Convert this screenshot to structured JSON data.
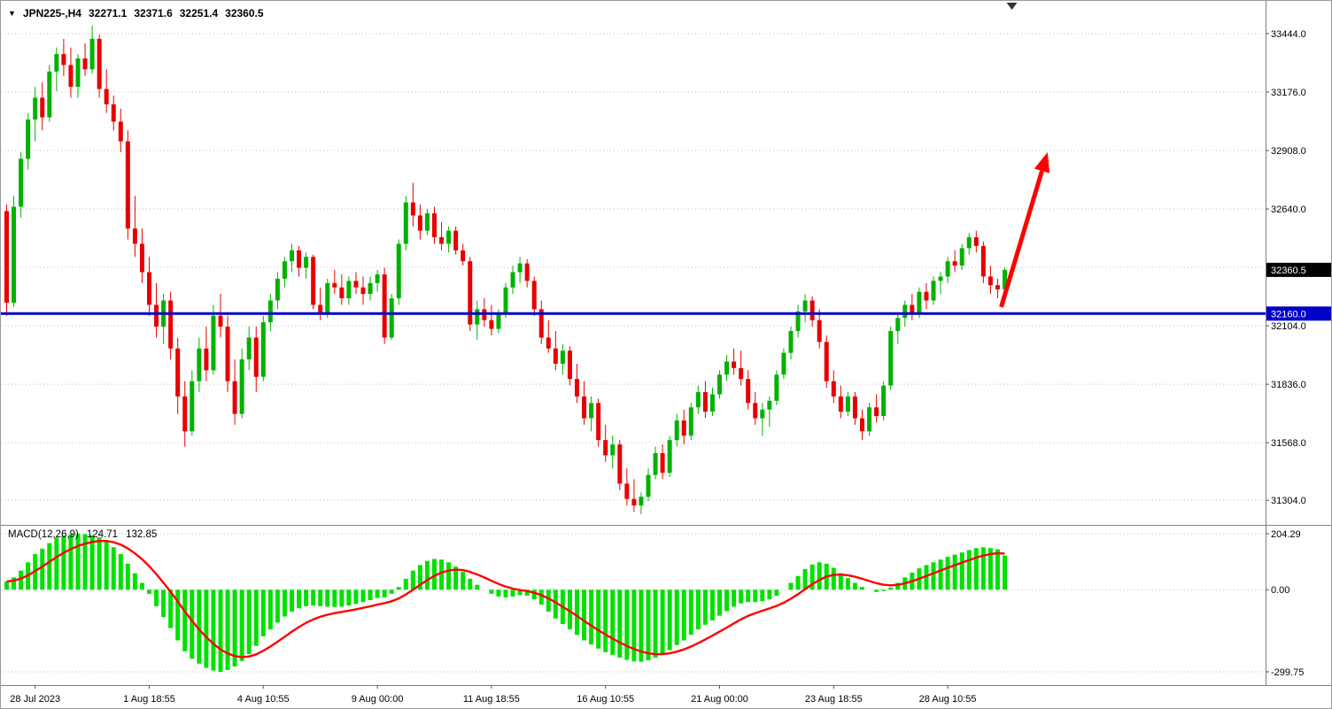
{
  "header": {
    "expand_icon": "▼",
    "instrument": "JPN225-,H4",
    "open": "32271.1",
    "high": "32371.6",
    "low": "32251.4",
    "close": "32360.5"
  },
  "colors": {
    "bull": "#00B200",
    "bear": "#E80000",
    "macd_hist": "#00E100",
    "signal": "#FF0000",
    "hline": "#0000C8",
    "badge_current": "#000000",
    "badge_text": "#FFFFFF",
    "grid": "#BDBDBD",
    "frame": "#808080",
    "text": "#000000"
  },
  "chart_data": {
    "type": "candlestick",
    "symbol": "JPN225-",
    "timeframe": "H4",
    "price_axis": {
      "max": 33594,
      "min": 31191,
      "gridlines": [
        33444,
        33176,
        32908,
        32640,
        32372,
        32104,
        31836,
        31568,
        31304
      ],
      "labels": [
        {
          "text": "33444.0",
          "price": 33444
        },
        {
          "text": "33176.0",
          "price": 33176
        },
        {
          "text": "32908.0",
          "price": 32908
        },
        {
          "text": "32640.0",
          "price": 32640
        },
        {
          "text": "32104.0",
          "price": 32104
        },
        {
          "text": "31836.0",
          "price": 31836
        },
        {
          "text": "31568.0",
          "price": 31568
        },
        {
          "text": "31304.0",
          "price": 31304
        }
      ]
    },
    "current_price_badge": {
      "text": "32360.5",
      "price": 32360.5
    },
    "hline": {
      "text": "32160.0",
      "price": 32160
    },
    "candles": [
      [
        32630,
        32660,
        32150,
        32210
      ],
      [
        32210,
        32700,
        32190,
        32650
      ],
      [
        32650,
        32900,
        32600,
        32870
      ],
      [
        32870,
        33080,
        32820,
        33050
      ],
      [
        33050,
        33200,
        32950,
        33150
      ],
      [
        33150,
        33220,
        33000,
        33060
      ],
      [
        33060,
        33300,
        33040,
        33270
      ],
      [
        33270,
        33380,
        33180,
        33350
      ],
      [
        33350,
        33420,
        33250,
        33300
      ],
      [
        33300,
        33380,
        33150,
        33200
      ],
      [
        33200,
        33350,
        33150,
        33330
      ],
      [
        33330,
        33400,
        33250,
        33280
      ],
      [
        33280,
        33480,
        33260,
        33420
      ],
      [
        33420,
        33440,
        33150,
        33190
      ],
      [
        33190,
        33280,
        33080,
        33120
      ],
      [
        33120,
        33160,
        33000,
        33040
      ],
      [
        33040,
        33100,
        32900,
        32950
      ],
      [
        32950,
        33000,
        32500,
        32550
      ],
      [
        32550,
        32700,
        32420,
        32480
      ],
      [
        32480,
        32550,
        32300,
        32350
      ],
      [
        32350,
        32420,
        32150,
        32200
      ],
      [
        32200,
        32300,
        32050,
        32100
      ],
      [
        32100,
        32250,
        32020,
        32220
      ],
      [
        32220,
        32260,
        31950,
        32000
      ],
      [
        32000,
        32050,
        31700,
        31780
      ],
      [
        31780,
        31850,
        31550,
        31620
      ],
      [
        31620,
        31900,
        31600,
        31850
      ],
      [
        31850,
        32050,
        31800,
        32000
      ],
      [
        32000,
        32100,
        31850,
        31900
      ],
      [
        31900,
        32200,
        31880,
        32150
      ],
      [
        32150,
        32250,
        32050,
        32100
      ],
      [
        32100,
        32150,
        31800,
        31850
      ],
      [
        31850,
        31950,
        31650,
        31700
      ],
      [
        31700,
        32000,
        31680,
        31950
      ],
      [
        31950,
        32100,
        31900,
        32050
      ],
      [
        32050,
        32100,
        31800,
        31870
      ],
      [
        31870,
        32150,
        31850,
        32120
      ],
      [
        32120,
        32250,
        32080,
        32220
      ],
      [
        32220,
        32350,
        32180,
        32320
      ],
      [
        32320,
        32420,
        32280,
        32400
      ],
      [
        32400,
        32480,
        32350,
        32450
      ],
      [
        32450,
        32470,
        32330,
        32370
      ],
      [
        32370,
        32440,
        32320,
        32420
      ],
      [
        32420,
        32430,
        32180,
        32200
      ],
      [
        32200,
        32280,
        32130,
        32160
      ],
      [
        32160,
        32320,
        32140,
        32300
      ],
      [
        32300,
        32360,
        32250,
        32280
      ],
      [
        32280,
        32340,
        32200,
        32230
      ],
      [
        32230,
        32330,
        32200,
        32310
      ],
      [
        32310,
        32350,
        32250,
        32280
      ],
      [
        32280,
        32330,
        32200,
        32250
      ],
      [
        32250,
        32330,
        32220,
        32300
      ],
      [
        32300,
        32360,
        32260,
        32340
      ],
      [
        32340,
        32370,
        32020,
        32050
      ],
      [
        32050,
        32250,
        32040,
        32230
      ],
      [
        32230,
        32500,
        32200,
        32480
      ],
      [
        32480,
        32700,
        32450,
        32670
      ],
      [
        32670,
        32760,
        32560,
        32610
      ],
      [
        32610,
        32660,
        32500,
        32540
      ],
      [
        32540,
        32640,
        32520,
        32620
      ],
      [
        32620,
        32650,
        32480,
        32510
      ],
      [
        32510,
        32580,
        32450,
        32480
      ],
      [
        32480,
        32560,
        32440,
        32540
      ],
      [
        32540,
        32560,
        32430,
        32450
      ],
      [
        32450,
        32480,
        32380,
        32400
      ],
      [
        32400,
        32420,
        32080,
        32110
      ],
      [
        32110,
        32220,
        32040,
        32180
      ],
      [
        32180,
        32230,
        32100,
        32130
      ],
      [
        32130,
        32200,
        32060,
        32090
      ],
      [
        32090,
        32180,
        32070,
        32160
      ],
      [
        32160,
        32300,
        32140,
        32280
      ],
      [
        32280,
        32380,
        32250,
        32350
      ],
      [
        32350,
        32420,
        32300,
        32390
      ],
      [
        32390,
        32410,
        32280,
        32310
      ],
      [
        32310,
        32330,
        32150,
        32180
      ],
      [
        32180,
        32220,
        32020,
        32050
      ],
      [
        32050,
        32130,
        31980,
        32000
      ],
      [
        32000,
        32080,
        31900,
        31930
      ],
      [
        31930,
        32020,
        31880,
        31990
      ],
      [
        31990,
        32010,
        31830,
        31860
      ],
      [
        31860,
        31930,
        31750,
        31780
      ],
      [
        31780,
        31850,
        31650,
        31680
      ],
      [
        31680,
        31780,
        31620,
        31750
      ],
      [
        31750,
        31770,
        31550,
        31580
      ],
      [
        31580,
        31650,
        31480,
        31510
      ],
      [
        31510,
        31600,
        31450,
        31560
      ],
      [
        31560,
        31580,
        31350,
        31380
      ],
      [
        31380,
        31450,
        31280,
        31310
      ],
      [
        31310,
        31400,
        31250,
        31280
      ],
      [
        31280,
        31340,
        31240,
        31320
      ],
      [
        31320,
        31450,
        31300,
        31420
      ],
      [
        31420,
        31550,
        31400,
        31520
      ],
      [
        31520,
        31560,
        31400,
        31430
      ],
      [
        31430,
        31600,
        31410,
        31580
      ],
      [
        31580,
        31700,
        31550,
        31670
      ],
      [
        31670,
        31720,
        31560,
        31600
      ],
      [
        31600,
        31750,
        31580,
        31730
      ],
      [
        31730,
        31830,
        31700,
        31800
      ],
      [
        31800,
        31850,
        31680,
        31710
      ],
      [
        31710,
        31820,
        31690,
        31790
      ],
      [
        31790,
        31900,
        31770,
        31880
      ],
      [
        31880,
        31970,
        31850,
        31940
      ],
      [
        31940,
        32000,
        31880,
        31910
      ],
      [
        31910,
        31990,
        31830,
        31860
      ],
      [
        31860,
        31900,
        31720,
        31750
      ],
      [
        31750,
        31800,
        31650,
        31680
      ],
      [
        31680,
        31750,
        31600,
        31720
      ],
      [
        31720,
        31780,
        31640,
        31760
      ],
      [
        31760,
        31900,
        31740,
        31880
      ],
      [
        31880,
        32000,
        31860,
        31980
      ],
      [
        31980,
        32100,
        31950,
        32080
      ],
      [
        32080,
        32200,
        32050,
        32170
      ],
      [
        32170,
        32250,
        32120,
        32220
      ],
      [
        32220,
        32240,
        32100,
        32130
      ],
      [
        32130,
        32180,
        32000,
        32030
      ],
      [
        32030,
        32060,
        31820,
        31850
      ],
      [
        31850,
        31900,
        31750,
        31780
      ],
      [
        31780,
        31830,
        31680,
        31710
      ],
      [
        31710,
        31800,
        31690,
        31780
      ],
      [
        31780,
        31800,
        31650,
        31680
      ],
      [
        31680,
        31720,
        31580,
        31620
      ],
      [
        31620,
        31750,
        31600,
        31730
      ],
      [
        31730,
        31790,
        31660,
        31690
      ],
      [
        31690,
        31850,
        31670,
        31830
      ],
      [
        31830,
        32100,
        31810,
        32080
      ],
      [
        32080,
        32160,
        32020,
        32140
      ],
      [
        32140,
        32220,
        32100,
        32200
      ],
      [
        32200,
        32250,
        32130,
        32160
      ],
      [
        32160,
        32280,
        32140,
        32260
      ],
      [
        32260,
        32300,
        32180,
        32220
      ],
      [
        32220,
        32330,
        32200,
        32310
      ],
      [
        32310,
        32350,
        32250,
        32330
      ],
      [
        32330,
        32420,
        32300,
        32400
      ],
      [
        32400,
        32450,
        32350,
        32380
      ],
      [
        32380,
        32480,
        32360,
        32460
      ],
      [
        32460,
        32530,
        32430,
        32510
      ],
      [
        32510,
        32540,
        32440,
        32470
      ],
      [
        32470,
        32490,
        32300,
        32330
      ],
      [
        32330,
        32380,
        32250,
        32290
      ],
      [
        32290,
        32320,
        32230,
        32271
      ],
      [
        32271.1,
        32371.6,
        32251.4,
        32360.5
      ]
    ],
    "macd": {
      "name": "MACD(12,26,9)",
      "value_main": "124.71",
      "value_signal": "132.85",
      "signal_period": 9,
      "axis": {
        "max": 236.6,
        "min": -348.2,
        "labels": [
          {
            "text": "204.29",
            "value": 204.29
          },
          {
            "text": "0.00",
            "value": 0
          },
          {
            "text": "-299.75",
            "value": -299.75
          }
        ]
      },
      "histogram": [
        30,
        45,
        70,
        100,
        130,
        150,
        170,
        190,
        198,
        202,
        204.29,
        203,
        199,
        191,
        178,
        155,
        130,
        95,
        60,
        25,
        -15,
        -60,
        -100,
        -140,
        -185,
        -225,
        -252,
        -270,
        -285,
        -295,
        -299.75,
        -293,
        -280,
        -260,
        -235,
        -205,
        -170,
        -145,
        -120,
        -98,
        -80,
        -68,
        -60,
        -58,
        -60,
        -62,
        -63,
        -62,
        -58,
        -52,
        -45,
        -38,
        -30,
        -28,
        -15,
        10,
        40,
        70,
        90,
        105,
        112,
        110,
        100,
        85,
        65,
        40,
        18,
        0,
        -15,
        -25,
        -28,
        -25,
        -20,
        -22,
        -35,
        -55,
        -80,
        -105,
        -125,
        -145,
        -165,
        -185,
        -200,
        -215,
        -228,
        -238,
        -248,
        -256,
        -262,
        -263,
        -258,
        -248,
        -235,
        -220,
        -202,
        -185,
        -165,
        -145,
        -128,
        -112,
        -95,
        -78,
        -62,
        -50,
        -45,
        -45,
        -42,
        -35,
        -22,
        0,
        25,
        50,
        75,
        92,
        100,
        95,
        80,
        60,
        42,
        25,
        10,
        0,
        -8,
        -5,
        8,
        25,
        45,
        62,
        78,
        90,
        100,
        110,
        120,
        128,
        136,
        145,
        152,
        155,
        152,
        148,
        124.71
      ]
    },
    "time_axis": [
      {
        "text": "28 Jul 2023",
        "bar": 4
      },
      {
        "text": "1 Aug 18:55",
        "bar": 20
      },
      {
        "text": "4 Aug 10:55",
        "bar": 36
      },
      {
        "text": "9 Aug 00:00",
        "bar": 52
      },
      {
        "text": "11 Aug 18:55",
        "bar": 68
      },
      {
        "text": "16 Aug 10:55",
        "bar": 84
      },
      {
        "text": "21 Aug 00:00",
        "bar": 100
      },
      {
        "text": "23 Aug 18:55",
        "bar": 116
      },
      {
        "text": "28 Aug 10:55",
        "bar": 132
      }
    ],
    "trend_arrow": {
      "from": {
        "bar": 139.5,
        "price": 32190
      },
      "to": {
        "bar": 146,
        "price": 32900
      },
      "color": "#FF0000"
    },
    "shift_marker_bar": 141
  }
}
